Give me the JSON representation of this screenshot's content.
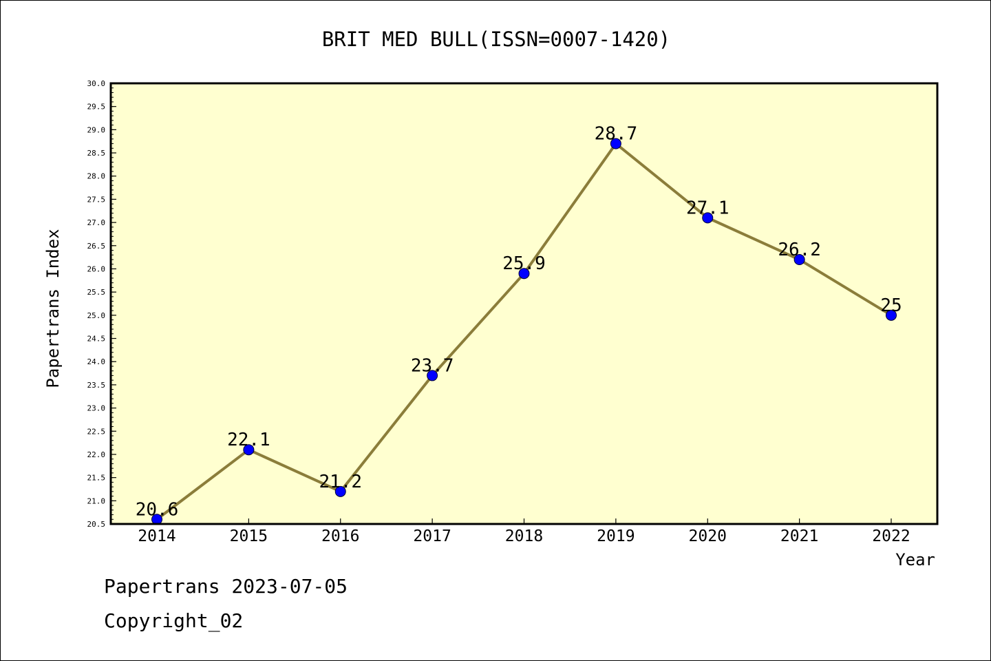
{
  "chart_data": {
    "type": "line",
    "title": "BRIT MED BULL(ISSN=0007-1420)",
    "xlabel": "Year",
    "ylabel": "Papertrans Index",
    "categories": [
      "2014",
      "2015",
      "2016",
      "2017",
      "2018",
      "2019",
      "2020",
      "2021",
      "2022"
    ],
    "values": [
      20.6,
      22.1,
      21.2,
      23.7,
      25.9,
      28.7,
      27.1,
      26.2,
      25
    ],
    "data_labels": [
      "20.6",
      "22.1",
      "21.2",
      "23.7",
      "25.9",
      "28.7",
      "27.1",
      "26.2",
      "25"
    ],
    "ylim": [
      20.5,
      30.0
    ],
    "y_ticks": [
      "20.5",
      "21.0",
      "21.5",
      "22.0",
      "22.5",
      "23.0",
      "23.5",
      "24.0",
      "24.5",
      "25.0",
      "25.5",
      "26.0",
      "26.5",
      "27.0",
      "27.5",
      "28.0",
      "28.5",
      "29.0",
      "29.5",
      "30.0"
    ],
    "grid": false,
    "colors": {
      "plot_background": "#ffffd0",
      "line": "#8b7d3a",
      "marker": "#0000ff"
    }
  },
  "footer": {
    "line1": "Papertrans 2023-07-05",
    "line2": "Copyright_02"
  }
}
